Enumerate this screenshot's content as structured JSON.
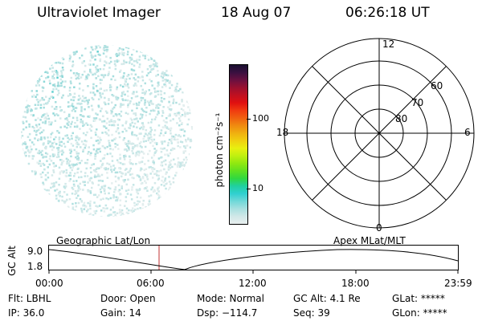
{
  "header": {
    "instrument": "Ultraviolet Imager",
    "date": "18 Aug 07",
    "time": "06:26:18 UT"
  },
  "colorbar": {
    "unit_label": "photon cm⁻²s⁻¹",
    "ticks": [
      "100",
      "10"
    ],
    "colors": [
      "#1a1030",
      "#3a1040",
      "#6a1040",
      "#9a1030",
      "#c01020",
      "#e01010",
      "#f03a10",
      "#f06010",
      "#f08a10",
      "#f0b010",
      "#f0d010",
      "#e8f010",
      "#c0f010",
      "#90e810",
      "#60e020",
      "#30d840",
      "#20d0a0",
      "#30d0d0",
      "#70d8d8",
      "#a8e0e0",
      "#d0e8e8",
      "#e8eeee"
    ]
  },
  "polar": {
    "labels": {
      "top": "12",
      "bottom": "0",
      "left": "18",
      "right": "6"
    },
    "rings": [
      "60",
      "70",
      "80"
    ]
  },
  "timeline": {
    "ylabel": "GC Alt",
    "ymax": "9.0",
    "ymin": "1.8",
    "left_title": "Geographic Lat/Lon",
    "right_title": "Apex MLat/MLT",
    "xticks": [
      "00:00",
      "06:00",
      "12:00",
      "18:00",
      "23:59"
    ],
    "marker_color": "#c03030"
  },
  "status": {
    "flt": "Flt: LBHL",
    "ip": "IP: 36.0",
    "door": "Door: Open",
    "gain": "Gain: 14",
    "mode": "Mode: Normal",
    "dsp": "Dsp: −114.7",
    "gcalt": "GC Alt: 4.1 Re",
    "seq": "Seq: 39",
    "glat": "GLat: *****",
    "glon": "GLon: *****"
  }
}
